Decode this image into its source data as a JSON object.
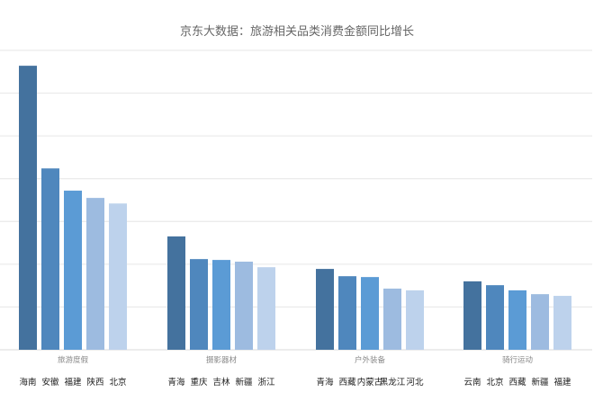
{
  "chart_data": {
    "type": "bar",
    "title": "京东大数据：旅游相关品类消费金额同比增长",
    "xlabel": "",
    "ylabel": "",
    "ylim": [
      0,
      7
    ],
    "grid": true,
    "y_tick_labels_shown": false,
    "colors": [
      "#44729e",
      "#4f87bd",
      "#5b9bd5",
      "#9dbbe0",
      "#bdd2ec"
    ],
    "groups": [
      {
        "category": "旅游度假",
        "regions": [
          "海南",
          "安徽",
          "福建",
          "陕西",
          "北京"
        ],
        "values": [
          6.64,
          4.24,
          3.72,
          3.55,
          3.42
        ]
      },
      {
        "category": "摄影器材",
        "regions": [
          "青海",
          "重庆",
          "吉林",
          "新疆",
          "浙江"
        ],
        "values": [
          2.65,
          2.12,
          2.1,
          2.06,
          1.93
        ]
      },
      {
        "category": "户外装备",
        "regions": [
          "青海",
          "西藏",
          "内蒙古",
          "黑龙江",
          "河北"
        ],
        "values": [
          1.89,
          1.72,
          1.7,
          1.43,
          1.39
        ]
      },
      {
        "category": "骑行运动",
        "regions": [
          "云南",
          "北京",
          "西藏",
          "新疆",
          "福建"
        ],
        "values": [
          1.6,
          1.51,
          1.39,
          1.3,
          1.26
        ]
      }
    ]
  }
}
